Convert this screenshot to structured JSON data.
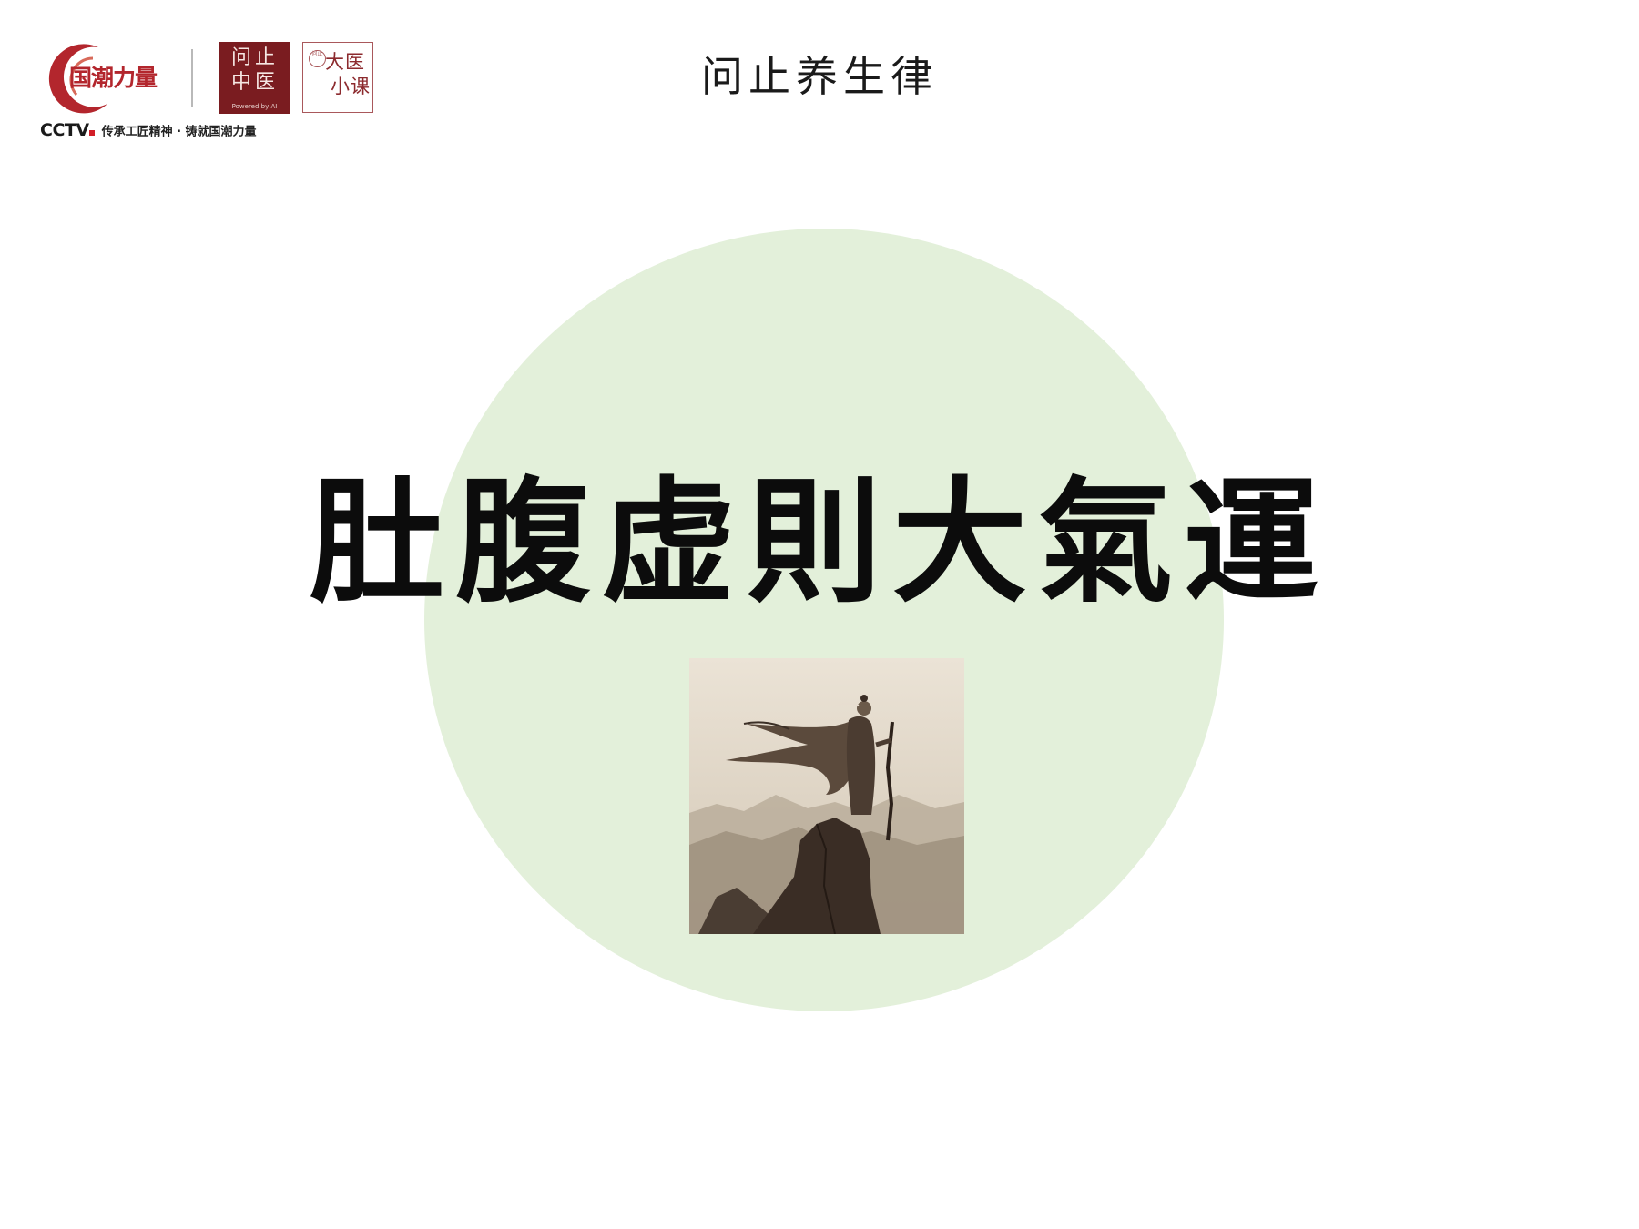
{
  "header": {
    "title": "问止养生律",
    "logos": {
      "guochao": {
        "text": "国潮力量",
        "accent": "#b3262d"
      },
      "wenzhi": {
        "line1": "问止",
        "line2": "中医",
        "tagline": "Powered by AI",
        "background": "#7a1c20"
      },
      "daiyi": {
        "seal": "问止",
        "line1": "大医",
        "line2": "小课",
        "accent": "#8c2a2e"
      },
      "cctv": {
        "mark": "CCTV",
        "slogan": "传承工匠精神 · 铸就国潮力量"
      }
    }
  },
  "main": {
    "headline": "肚腹虚則大氣運",
    "circle_color": "#e3f0da",
    "illustration": "sage-on-mountain-peak-image"
  }
}
